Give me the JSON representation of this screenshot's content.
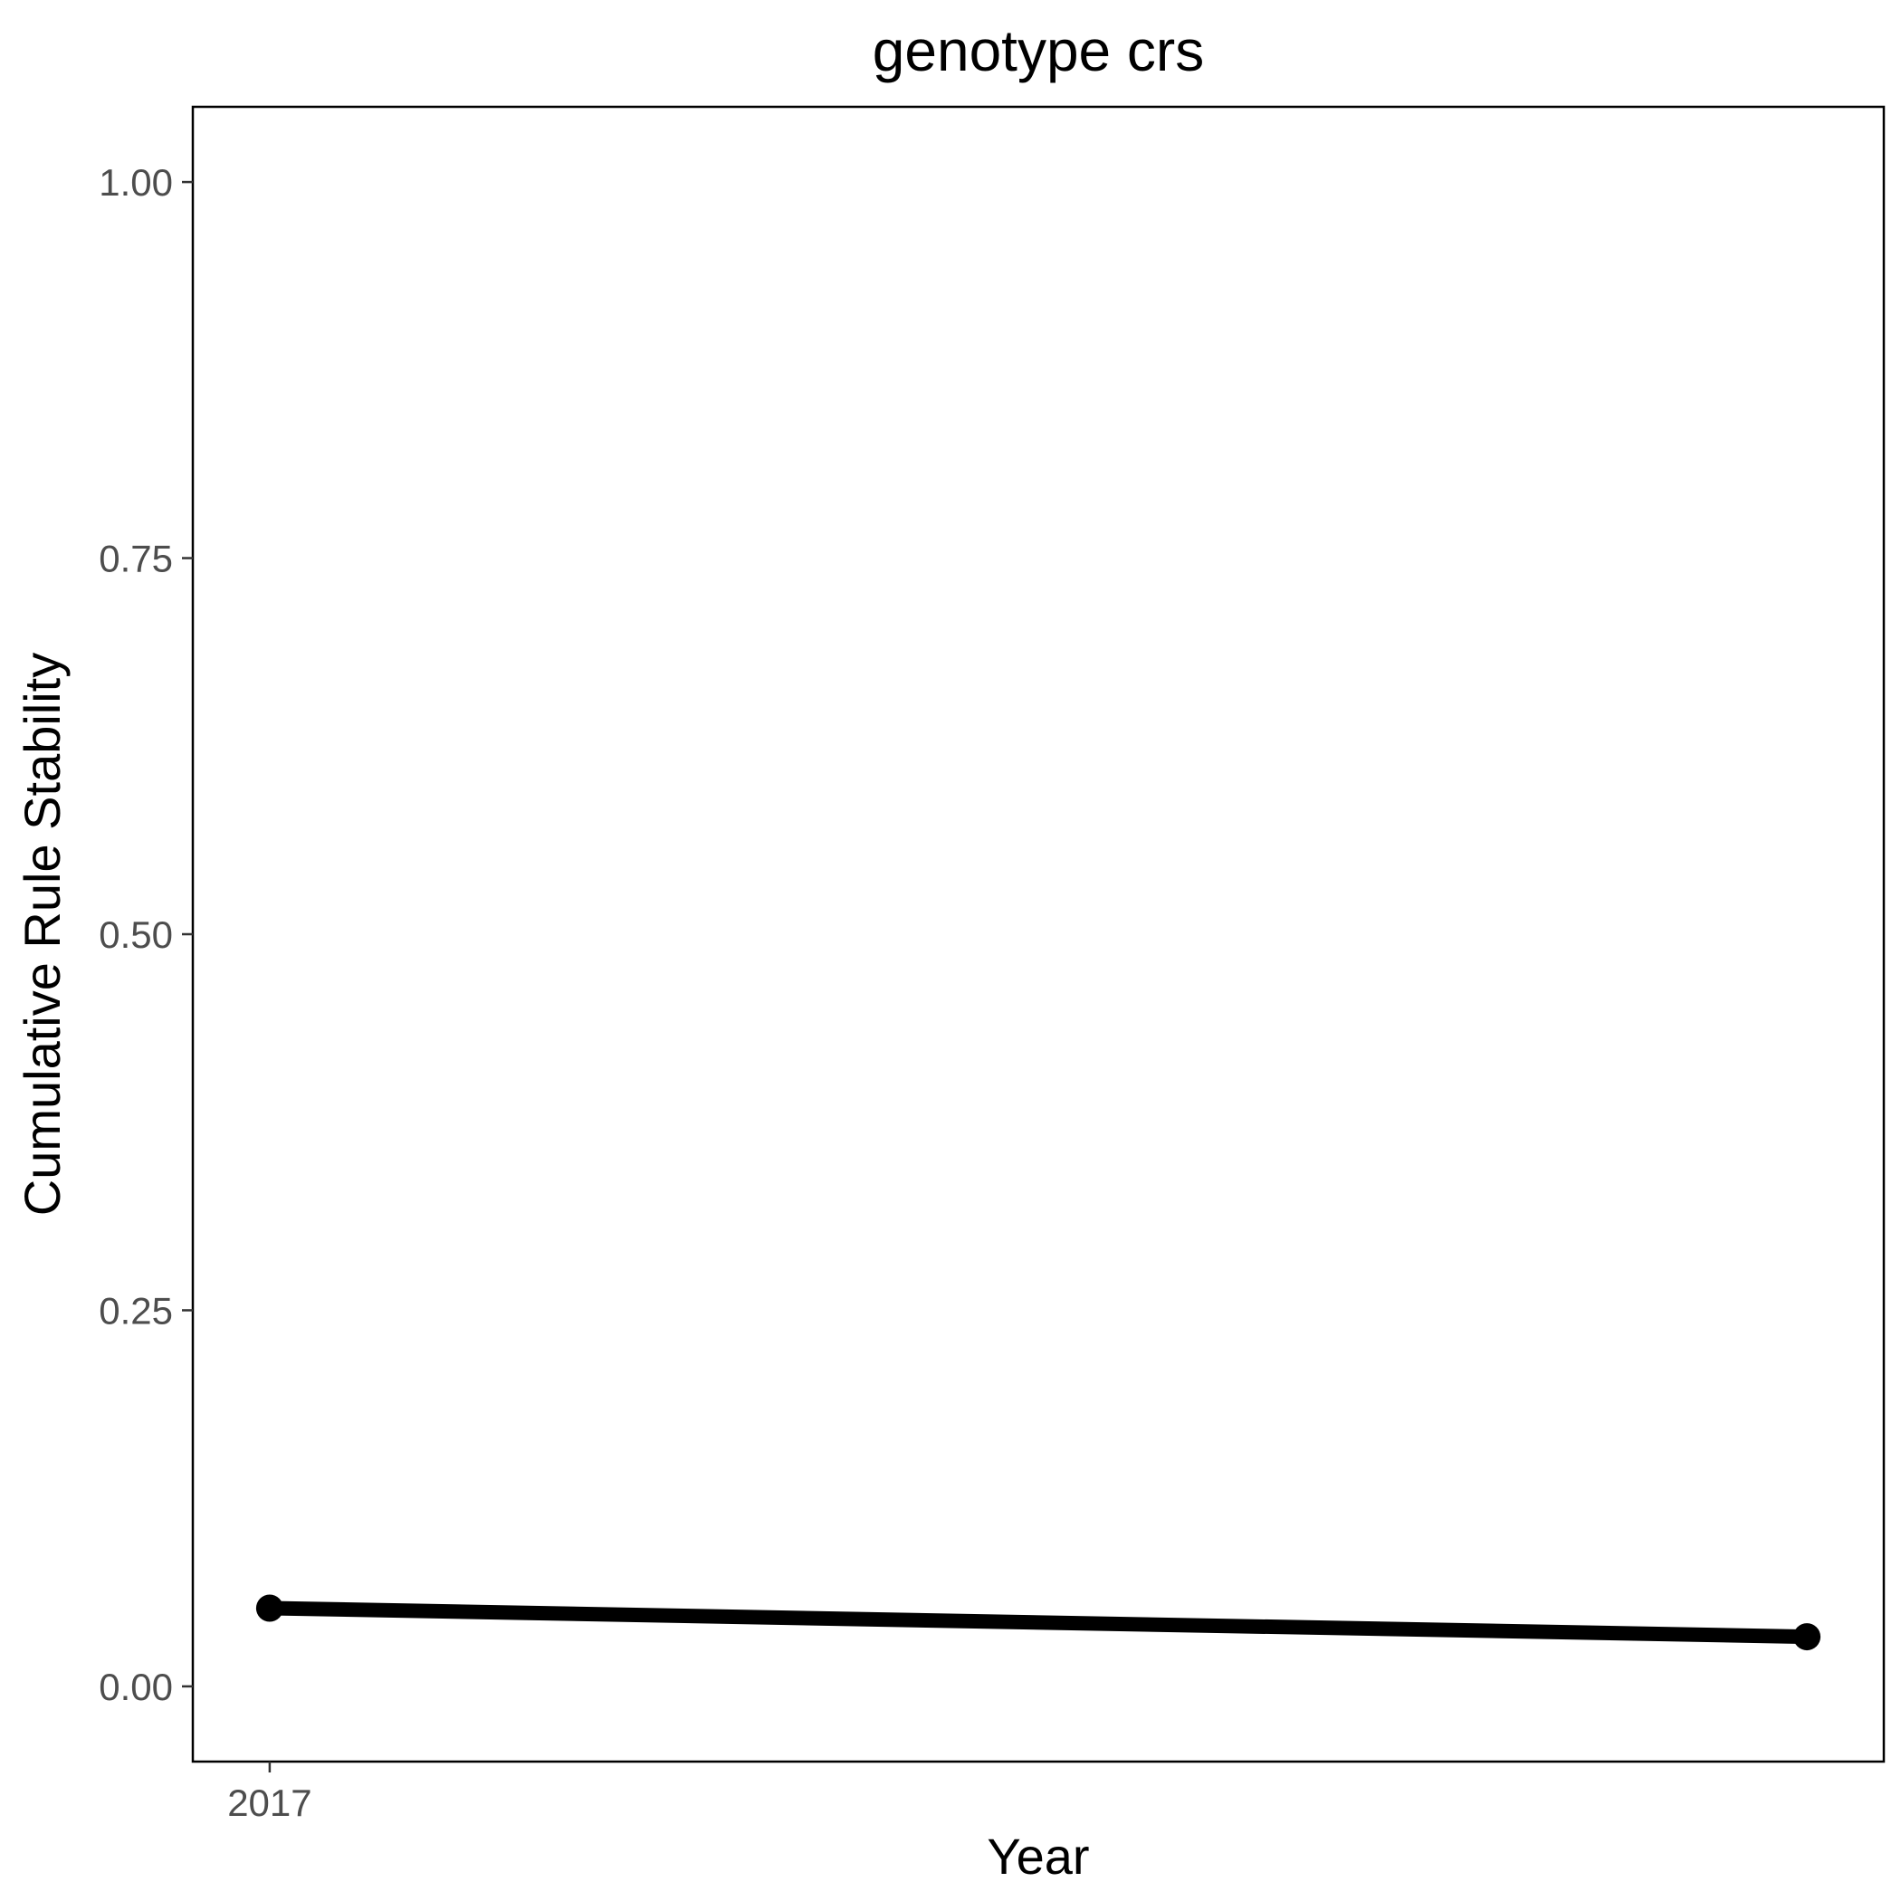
{
  "chart_data": {
    "type": "line",
    "title": "genotype crs",
    "xlabel": "Year",
    "ylabel": "Cumulative Rule Stability",
    "x_ticks": [
      {
        "value": 2017,
        "label": "2017"
      }
    ],
    "y_ticks": [
      {
        "value": 0.0,
        "label": "0.00"
      },
      {
        "value": 0.25,
        "label": "0.25"
      },
      {
        "value": 0.5,
        "label": "0.50"
      },
      {
        "value": 0.75,
        "label": "0.75"
      },
      {
        "value": 1.0,
        "label": "1.00"
      }
    ],
    "xlim": [
      2016.95,
      2018.05
    ],
    "ylim": [
      -0.05,
      1.05
    ],
    "grid": false,
    "series": [
      {
        "color": "#000000",
        "points": [
          {
            "x": 2017,
            "y": 0.052
          },
          {
            "x": 2018,
            "y": 0.033
          }
        ]
      }
    ]
  }
}
